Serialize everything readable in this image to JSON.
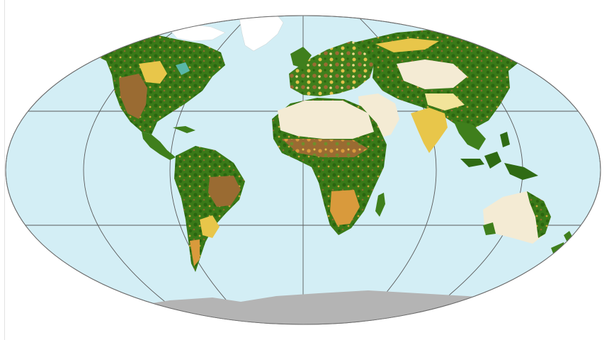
{
  "map": {
    "projection": "robinson",
    "colors": {
      "ocean": "#d3eef5",
      "graticule": "#5a5a5a",
      "outline": "#6b6b6b",
      "forest_dark": "#2f6b14",
      "forest": "#3f7f1c",
      "cropland": "#e8c64a",
      "grassland": "#f2e49a",
      "shrubland": "#9a6b32",
      "savanna": "#d99a3c",
      "desert": "#f4ebd4",
      "ice": "#ffffff",
      "antarctica": "#b4b4b4",
      "wetland": "#59b7a8"
    },
    "layers": [
      "ocean",
      "graticule",
      "north-america",
      "greenland",
      "south-america",
      "europe",
      "africa",
      "madagascar",
      "asia",
      "arabia",
      "india",
      "southeast-asia",
      "indonesia",
      "australia",
      "new-zealand",
      "antarctica"
    ]
  }
}
